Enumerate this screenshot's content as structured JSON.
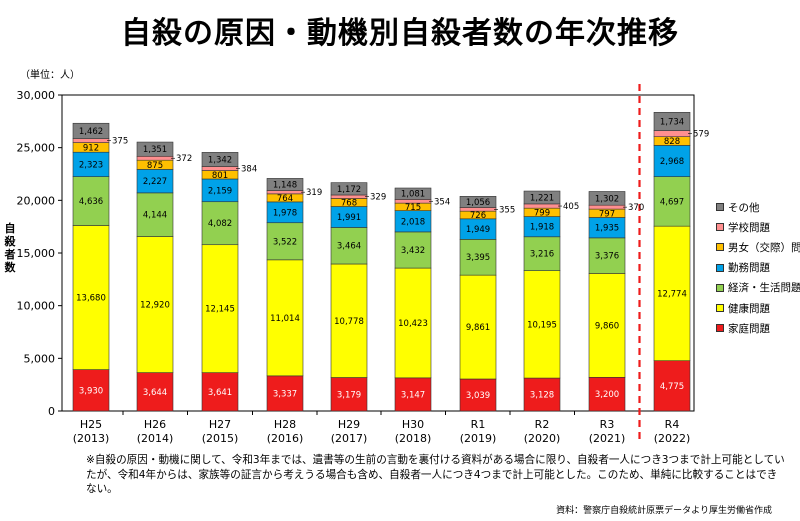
{
  "title": "自殺の原因・動機別自殺者数の年次推移",
  "unit_label": "（単位：人）",
  "y_axis_label": "自殺者数",
  "note": "※自殺の原因・動機に関して、令和3年までは、遺書等の生前の言動を裏付ける資料がある場合に限り、自殺者一人につき3つまで計上可能としていたが、令和4年からは、家族等の証言から考えうる場合も含め、自殺者一人につき4つまで計上可能とした。このため、単純に比較することはできない。",
  "source": "資料：警察庁自殺統計原票データより厚生労働省作成",
  "chart_data": {
    "type": "bar",
    "stacked": true,
    "categories": [
      {
        "line1": "H25",
        "line2": "(2013)"
      },
      {
        "line1": "H26",
        "line2": "(2014)"
      },
      {
        "line1": "H27",
        "line2": "(2015)"
      },
      {
        "line1": "H28",
        "line2": "(2016)"
      },
      {
        "line1": "H29",
        "line2": "(2017)"
      },
      {
        "line1": "H30",
        "line2": "(2018)"
      },
      {
        "line1": "R1",
        "line2": "(2019)"
      },
      {
        "line1": "R2",
        "line2": "(2020)"
      },
      {
        "line1": "R3",
        "line2": "(2021)"
      },
      {
        "line1": "R4",
        "line2": "(2022)"
      }
    ],
    "series": [
      {
        "name": "家庭問題",
        "color": "#ee1c1c",
        "values": [
          3930,
          3644,
          3641,
          3337,
          3179,
          3147,
          3039,
          3128,
          3200,
          4775
        ]
      },
      {
        "name": "健康問題",
        "color": "#ffff00",
        "values": [
          13680,
          12920,
          12145,
          11014,
          10778,
          10423,
          9861,
          10195,
          9860,
          12774
        ]
      },
      {
        "name": "経済・生活問題",
        "color": "#92d050",
        "values": [
          4636,
          4144,
          4082,
          3522,
          3464,
          3432,
          3395,
          3216,
          3376,
          4697
        ]
      },
      {
        "name": "勤務問題",
        "color": "#00a2e8",
        "values": [
          2323,
          2227,
          2159,
          1978,
          1991,
          2018,
          1949,
          1918,
          1935,
          2968
        ]
      },
      {
        "name": "男女（交際）問題",
        "color": "#ffc000",
        "values": [
          912,
          875,
          801,
          764,
          768,
          715,
          726,
          799,
          797,
          828
        ]
      },
      {
        "name": "学校問題",
        "color": "#ff8f8f",
        "values": [
          375,
          372,
          384,
          319,
          329,
          354,
          355,
          405,
          370,
          579
        ]
      },
      {
        "name": "その他",
        "color": "#808080",
        "values": [
          1462,
          1351,
          1342,
          1148,
          1172,
          1081,
          1056,
          1221,
          1302,
          1734
        ]
      }
    ],
    "legend_order": [
      "その他",
      "学校問題",
      "男女（交際）問題",
      "勤務問題",
      "経済・生活問題",
      "健康問題",
      "家庭問題"
    ],
    "yticks": [
      "0",
      "5,000",
      "10,000",
      "15,000",
      "20,000",
      "25,000",
      "30,000"
    ],
    "ylim": [
      0,
      30000
    ],
    "outside_label_series": "学校問題",
    "divider_color": "#ee1c1c",
    "legend_position": "right"
  }
}
